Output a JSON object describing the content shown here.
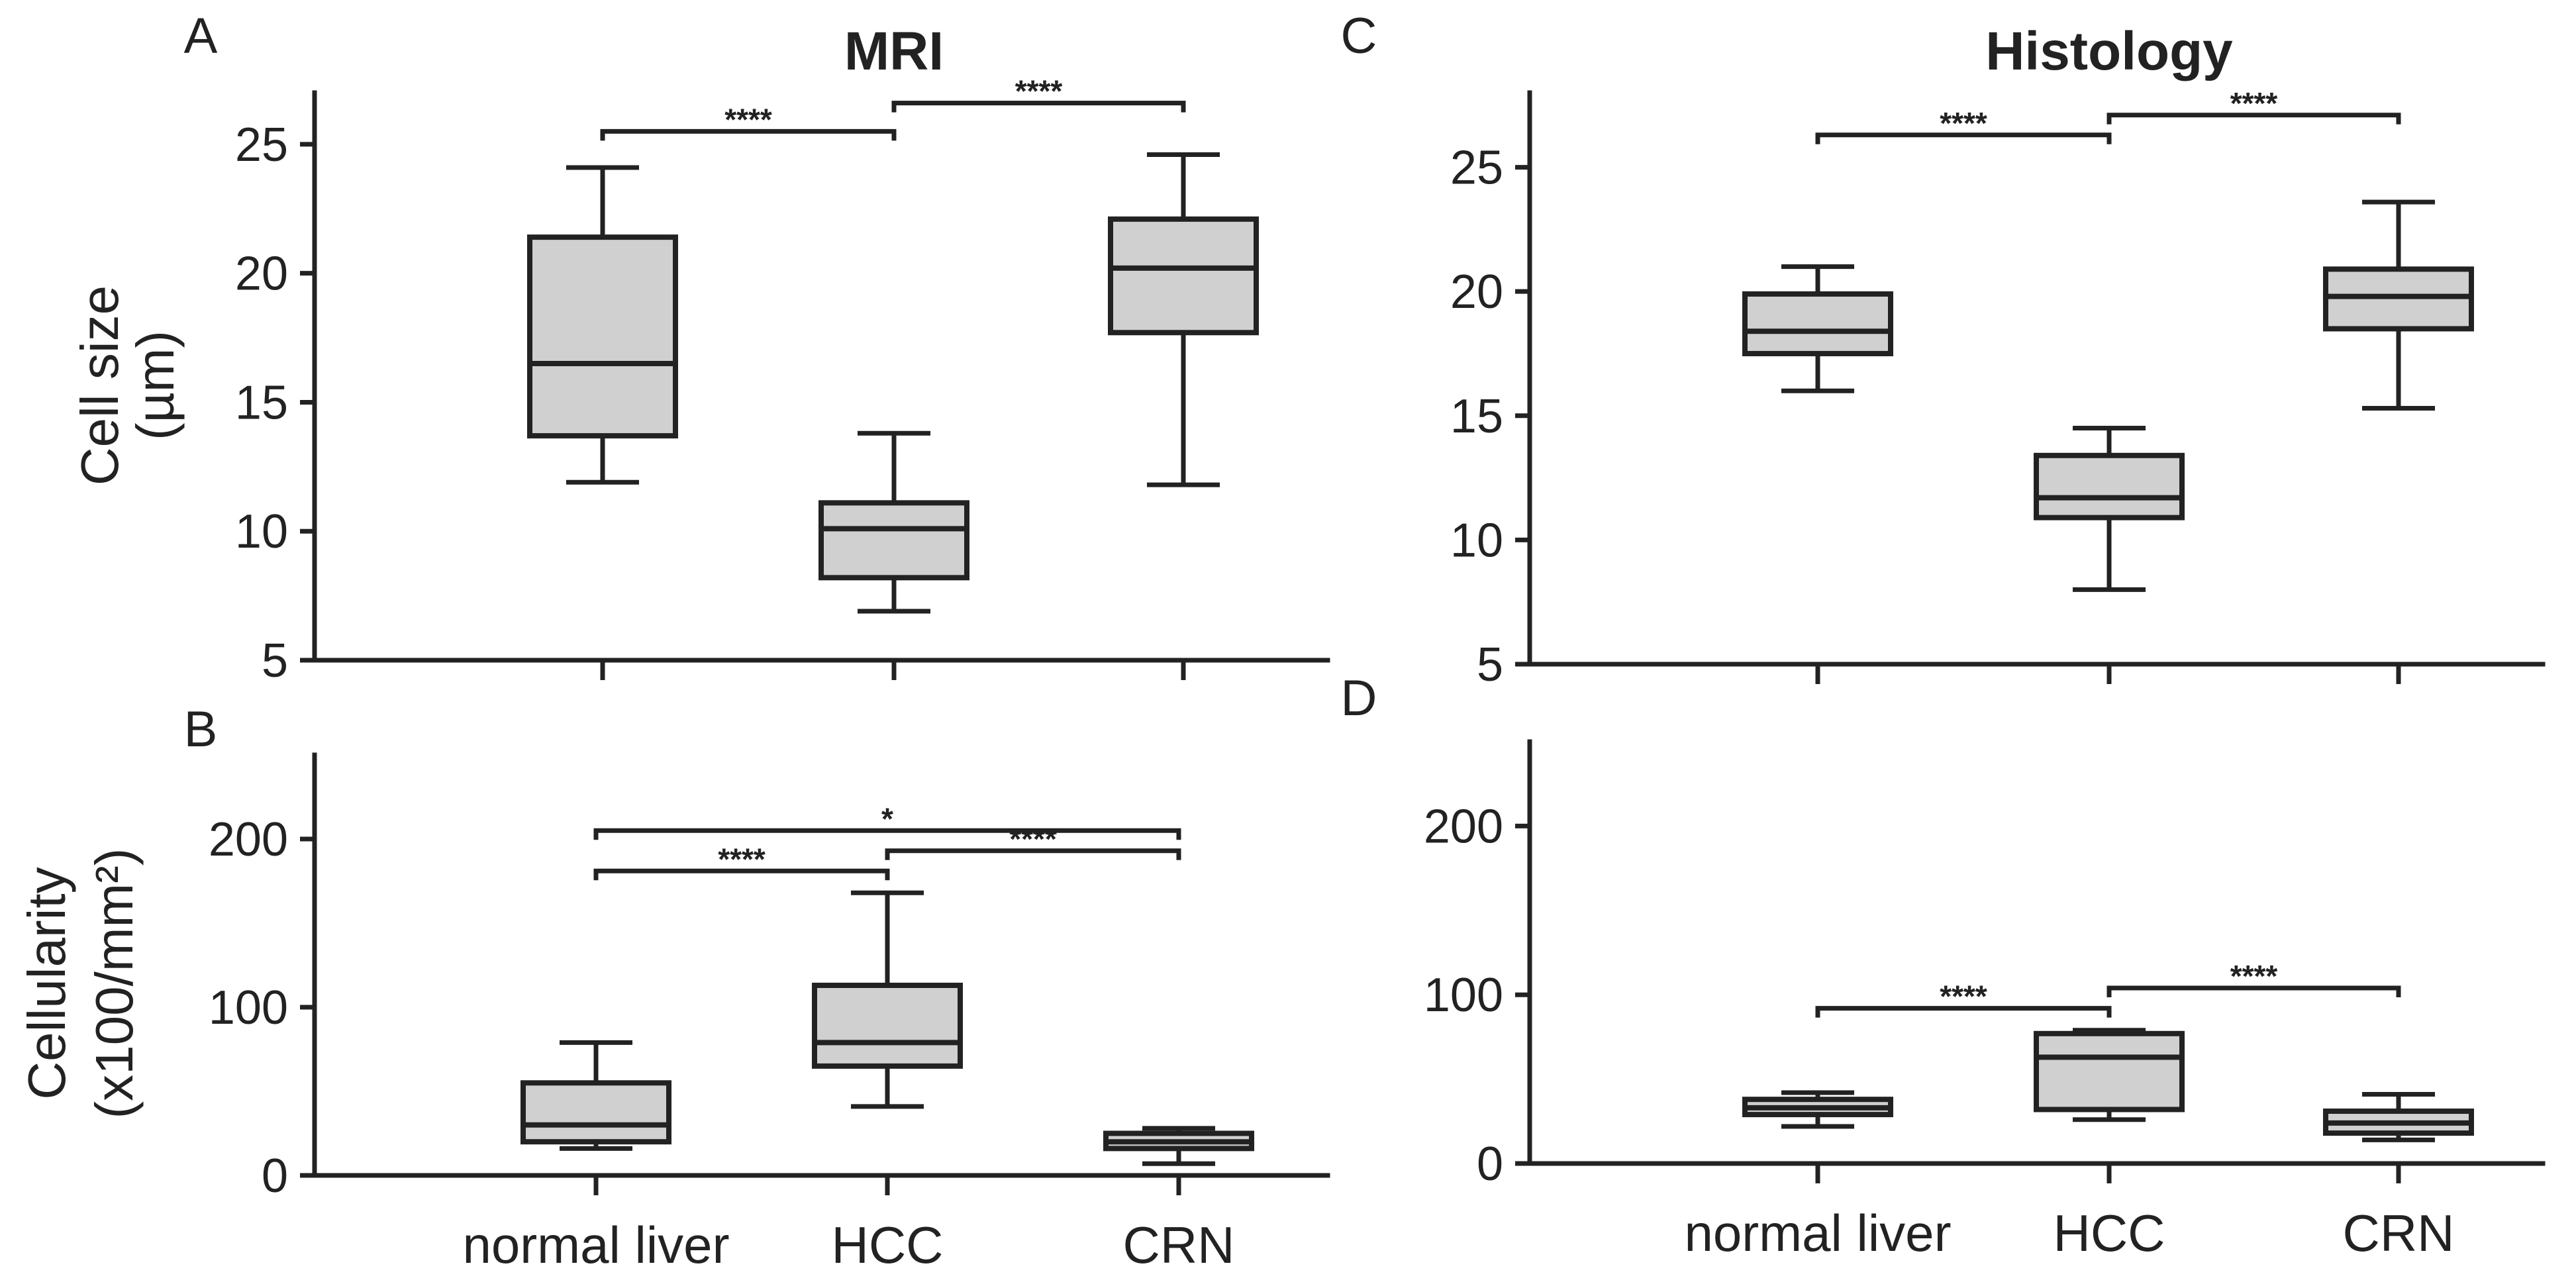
{
  "chart_data": [
    {
      "panel": "A",
      "type": "box",
      "title": "MRI",
      "ylabel": [
        "Cell size",
        "(µm)"
      ],
      "ylim": [
        5,
        27
      ],
      "yticks": [
        5,
        10,
        15,
        20,
        25
      ],
      "categories": [
        "normal liver",
        "HCC",
        "CRN"
      ],
      "show_category_labels": false,
      "boxes": [
        {
          "category": "normal liver",
          "whisker_low": 11.9,
          "q1": 13.7,
          "median": 16.5,
          "q3": 21.4,
          "whisker_high": 24.1
        },
        {
          "category": "HCC",
          "whisker_low": 6.9,
          "q1": 8.2,
          "median": 10.1,
          "q3": 11.1,
          "whisker_high": 13.8
        },
        {
          "category": "CRN",
          "whisker_low": 11.8,
          "q1": 17.7,
          "median": 20.2,
          "q3": 22.1,
          "whisker_high": 24.6
        }
      ],
      "significance": [
        {
          "from": "normal liver",
          "to": "HCC",
          "y": 25.5,
          "label": "****"
        },
        {
          "from": "HCC",
          "to": "CRN",
          "y": 26.6,
          "label": "****"
        }
      ]
    },
    {
      "panel": "B",
      "type": "box",
      "title": "",
      "ylabel": [
        "Cellularity",
        "(x100/mm²)"
      ],
      "ylim": [
        0,
        250
      ],
      "yticks": [
        0,
        100,
        200
      ],
      "categories": [
        "normal liver",
        "HCC",
        "CRN"
      ],
      "show_category_labels": true,
      "boxes": [
        {
          "category": "normal liver",
          "whisker_low": 16,
          "q1": 20,
          "median": 30,
          "q3": 55,
          "whisker_high": 79
        },
        {
          "category": "HCC",
          "whisker_low": 41,
          "q1": 65,
          "median": 79,
          "q3": 113,
          "whisker_high": 168
        },
        {
          "category": "CRN",
          "whisker_low": 7,
          "q1": 16,
          "median": 20,
          "q3": 25,
          "whisker_high": 28
        }
      ],
      "significance": [
        {
          "from": "normal liver",
          "to": "CRN",
          "y": 205,
          "label": "*"
        },
        {
          "from": "normal liver",
          "to": "HCC",
          "y": 181,
          "label": "****"
        },
        {
          "from": "HCC",
          "to": "CRN",
          "y": 193,
          "label": "****"
        }
      ]
    },
    {
      "panel": "C",
      "type": "box",
      "title": "Histology",
      "ylabel": [],
      "ylim": [
        5,
        28
      ],
      "yticks": [
        5,
        10,
        15,
        20,
        25
      ],
      "categories": [
        "normal liver",
        "HCC",
        "CRN"
      ],
      "show_category_labels": false,
      "boxes": [
        {
          "category": "normal liver",
          "whisker_low": 16.0,
          "q1": 17.5,
          "median": 18.4,
          "q3": 19.9,
          "whisker_high": 21.0
        },
        {
          "category": "HCC",
          "whisker_low": 8.0,
          "q1": 10.9,
          "median": 11.7,
          "q3": 13.4,
          "whisker_high": 14.5
        },
        {
          "category": "CRN",
          "whisker_low": 15.3,
          "q1": 18.5,
          "median": 19.8,
          "q3": 20.9,
          "whisker_high": 23.6
        }
      ],
      "significance": [
        {
          "from": "normal liver",
          "to": "HCC",
          "y": 26.3,
          "label": "****"
        },
        {
          "from": "HCC",
          "to": "CRN",
          "y": 27.1,
          "label": "****"
        }
      ]
    },
    {
      "panel": "D",
      "type": "box",
      "title": "",
      "ylabel": [],
      "ylim": [
        0,
        250
      ],
      "yticks": [
        0,
        100,
        200
      ],
      "categories": [
        "normal liver",
        "HCC",
        "CRN"
      ],
      "show_category_labels": true,
      "boxes": [
        {
          "category": "normal liver",
          "whisker_low": 22,
          "q1": 29,
          "median": 33,
          "q3": 38,
          "whisker_high": 42
        },
        {
          "category": "HCC",
          "whisker_low": 26,
          "q1": 32,
          "median": 63,
          "q3": 77,
          "whisker_high": 79
        },
        {
          "category": "CRN",
          "whisker_low": 14,
          "q1": 18,
          "median": 24,
          "q3": 31,
          "whisker_high": 41
        }
      ],
      "significance": [
        {
          "from": "normal liver",
          "to": "HCC",
          "y": 92,
          "label": "****"
        },
        {
          "from": "HCC",
          "to": "CRN",
          "y": 104,
          "label": "****"
        }
      ]
    }
  ]
}
